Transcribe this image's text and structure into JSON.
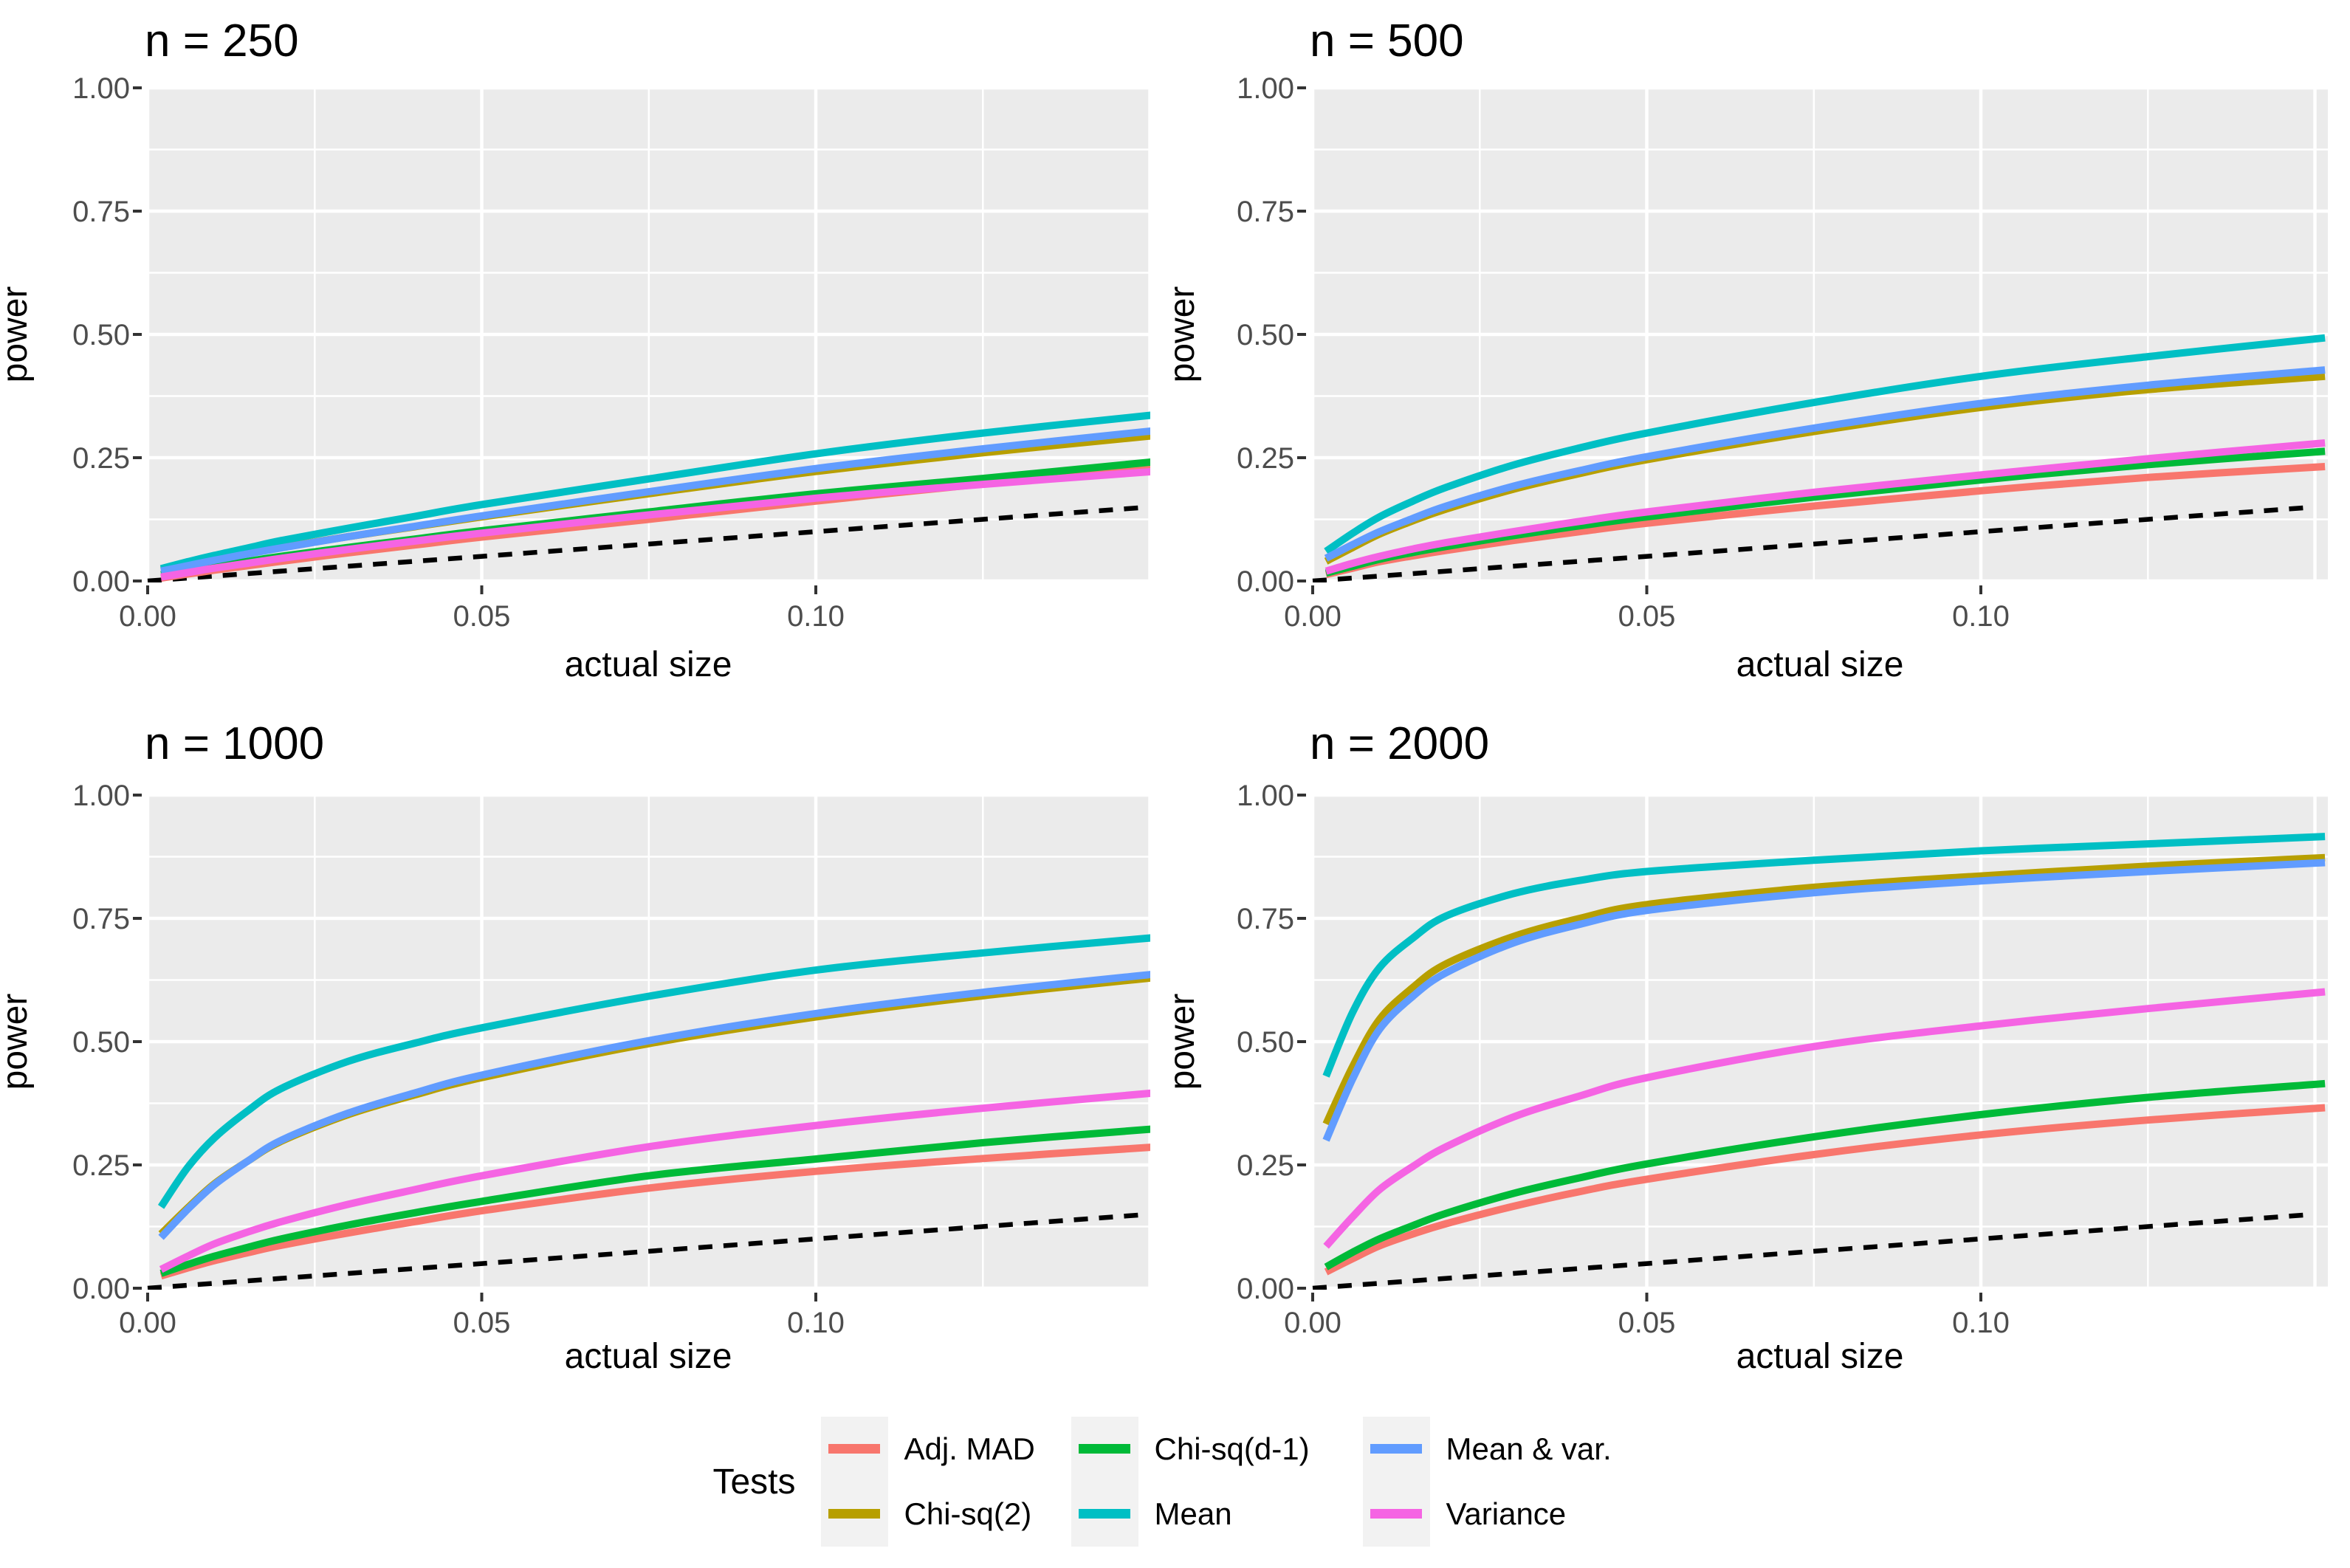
{
  "figure": {
    "background": "#FFFFFF",
    "panel_background": "#EBEBEB",
    "grid_color": "#FFFFFF",
    "tick_text_color": "#4D4D4D",
    "tick_mark_color": "#333333",
    "title_color": "#000000"
  },
  "legend": {
    "title": "Tests",
    "key_background": "#F2F2F2",
    "items": [
      {
        "label": "Adj. MAD",
        "color": "#F8766D"
      },
      {
        "label": "Chi-sq(2)",
        "color": "#B79F00"
      },
      {
        "label": "Chi-sq(d-1)",
        "color": "#00BA38"
      },
      {
        "label": "Mean",
        "color": "#00BFC4"
      },
      {
        "label": "Mean & var.",
        "color": "#619CFF"
      },
      {
        "label": "Variance",
        "color": "#F564E3"
      }
    ]
  },
  "chart_data": [
    {
      "type": "line",
      "title": "n = 250",
      "xlabel": "actual size",
      "ylabel": "power",
      "xlim": [
        0,
        0.15
      ],
      "ylim": [
        0,
        1
      ],
      "grid": true,
      "x_ticks": {
        "values": [
          0,
          0.05,
          0.1
        ],
        "labels": [
          "0.00",
          "0.05",
          "0.10"
        ]
      },
      "y_ticks": {
        "values": [
          0,
          0.25,
          0.5,
          0.75,
          1
        ],
        "labels": [
          "0.00",
          "0.25",
          "0.50",
          "0.75",
          "1.00"
        ]
      },
      "x_minor": [
        0.025,
        0.075,
        0.125
      ],
      "y_minor": [
        0.125,
        0.375,
        0.625,
        0.875
      ],
      "reference_line": {
        "name": "identity",
        "style": "dashed",
        "color": "#000000",
        "x": [
          0,
          0.1487
        ],
        "y": [
          0,
          0.1487
        ]
      },
      "x": [
        0.002,
        0.006,
        0.01,
        0.015,
        0.02,
        0.03,
        0.04,
        0.05,
        0.075,
        0.1,
        0.125,
        0.1515
      ],
      "series": [
        {
          "name": "Adj. MAD",
          "color": "#F8766D",
          "y": [
            0.006,
            0.014,
            0.022,
            0.031,
            0.04,
            0.057,
            0.073,
            0.089,
            0.125,
            0.162,
            0.197,
            0.232
          ]
        },
        {
          "name": "Chi-sq(2)",
          "color": "#B79F00",
          "y": [
            0.022,
            0.033,
            0.044,
            0.056,
            0.068,
            0.09,
            0.11,
            0.13,
            0.177,
            0.222,
            0.26,
            0.296
          ]
        },
        {
          "name": "Chi-sq(d-1)",
          "color": "#00BA38",
          "y": [
            0.013,
            0.021,
            0.03,
            0.04,
            0.05,
            0.068,
            0.085,
            0.102,
            0.14,
            0.177,
            0.208,
            0.243
          ]
        },
        {
          "name": "Mean",
          "color": "#00BFC4",
          "y": [
            0.025,
            0.039,
            0.052,
            0.067,
            0.082,
            0.107,
            0.131,
            0.155,
            0.207,
            0.258,
            0.3,
            0.338
          ]
        },
        {
          "name": "Mean & var.",
          "color": "#619CFF",
          "y": [
            0.02,
            0.031,
            0.042,
            0.055,
            0.067,
            0.09,
            0.111,
            0.132,
            0.181,
            0.228,
            0.268,
            0.306
          ]
        },
        {
          "name": "Variance",
          "color": "#F564E3",
          "y": [
            0.008,
            0.017,
            0.026,
            0.036,
            0.046,
            0.064,
            0.081,
            0.097,
            0.134,
            0.168,
            0.196,
            0.223
          ]
        }
      ]
    },
    {
      "type": "line",
      "title": "n = 500",
      "xlabel": "actual size",
      "ylabel": "power",
      "xlim": [
        0,
        0.15
      ],
      "ylim": [
        0,
        1
      ],
      "grid": true,
      "x_ticks": {
        "values": [
          0,
          0.05,
          0.1
        ],
        "labels": [
          "0.00",
          "0.05",
          "0.10"
        ]
      },
      "y_ticks": {
        "values": [
          0,
          0.25,
          0.5,
          0.75,
          1
        ],
        "labels": [
          "0.00",
          "0.25",
          "0.50",
          "0.75",
          "1.00"
        ]
      },
      "x_minor": [
        0.025,
        0.075,
        0.125
      ],
      "y_minor": [
        0.125,
        0.375,
        0.625,
        0.875
      ],
      "reference_line": {
        "name": "identity",
        "style": "dashed",
        "color": "#000000",
        "x": [
          0,
          0.1487
        ],
        "y": [
          0,
          0.1487
        ]
      },
      "x": [
        0.002,
        0.006,
        0.01,
        0.015,
        0.02,
        0.03,
        0.04,
        0.05,
        0.075,
        0.1,
        0.125,
        0.1515
      ],
      "series": [
        {
          "name": "Adj. MAD",
          "color": "#F8766D",
          "y": [
            0.013,
            0.026,
            0.039,
            0.051,
            0.062,
            0.082,
            0.1,
            0.117,
            0.152,
            0.183,
            0.21,
            0.232
          ]
        },
        {
          "name": "Chi-sq(2)",
          "color": "#B79F00",
          "y": [
            0.04,
            0.068,
            0.095,
            0.122,
            0.146,
            0.186,
            0.218,
            0.246,
            0.303,
            0.352,
            0.388,
            0.415
          ]
        },
        {
          "name": "Chi-sq(d-1)",
          "color": "#00BA38",
          "y": [
            0.016,
            0.03,
            0.044,
            0.058,
            0.07,
            0.092,
            0.112,
            0.13,
            0.17,
            0.205,
            0.236,
            0.263
          ]
        },
        {
          "name": "Mean",
          "color": "#00BFC4",
          "y": [
            0.06,
            0.097,
            0.13,
            0.162,
            0.19,
            0.235,
            0.27,
            0.3,
            0.362,
            0.415,
            0.455,
            0.493
          ]
        },
        {
          "name": "Mean & var.",
          "color": "#619CFF",
          "y": [
            0.046,
            0.074,
            0.1,
            0.127,
            0.152,
            0.192,
            0.224,
            0.252,
            0.31,
            0.36,
            0.397,
            0.428
          ]
        },
        {
          "name": "Variance",
          "color": "#F564E3",
          "y": [
            0.02,
            0.036,
            0.05,
            0.065,
            0.078,
            0.1,
            0.121,
            0.14,
            0.18,
            0.215,
            0.248,
            0.28
          ]
        }
      ]
    },
    {
      "type": "line",
      "title": "n = 1000",
      "xlabel": "actual size",
      "ylabel": "power",
      "xlim": [
        0,
        0.15
      ],
      "ylim": [
        0,
        1
      ],
      "grid": true,
      "x_ticks": {
        "values": [
          0,
          0.05,
          0.1
        ],
        "labels": [
          "0.00",
          "0.05",
          "0.10"
        ]
      },
      "y_ticks": {
        "values": [
          0,
          0.25,
          0.5,
          0.75,
          1
        ],
        "labels": [
          "0.00",
          "0.25",
          "0.50",
          "0.75",
          "1.00"
        ]
      },
      "x_minor": [
        0.025,
        0.075,
        0.125
      ],
      "y_minor": [
        0.125,
        0.375,
        0.625,
        0.875
      ],
      "reference_line": {
        "name": "identity",
        "style": "dashed",
        "color": "#000000",
        "x": [
          0,
          0.1487
        ],
        "y": [
          0,
          0.1487
        ]
      },
      "x": [
        0.002,
        0.006,
        0.01,
        0.015,
        0.02,
        0.03,
        0.04,
        0.05,
        0.075,
        0.1,
        0.125,
        0.1515
      ],
      "series": [
        {
          "name": "Adj. MAD",
          "color": "#F8766D",
          "y": [
            0.025,
            0.041,
            0.056,
            0.072,
            0.087,
            0.112,
            0.135,
            0.157,
            0.203,
            0.237,
            0.263,
            0.287
          ]
        },
        {
          "name": "Chi-sq(2)",
          "color": "#B79F00",
          "y": [
            0.11,
            0.163,
            0.212,
            0.258,
            0.298,
            0.352,
            0.392,
            0.427,
            0.496,
            0.55,
            0.593,
            0.631
          ]
        },
        {
          "name": "Chi-sq(d-1)",
          "color": "#00BA38",
          "y": [
            0.03,
            0.048,
            0.065,
            0.083,
            0.1,
            0.128,
            0.153,
            0.176,
            0.228,
            0.262,
            0.295,
            0.324
          ]
        },
        {
          "name": "Mean",
          "color": "#00BFC4",
          "y": [
            0.165,
            0.245,
            0.305,
            0.36,
            0.405,
            0.46,
            0.497,
            0.528,
            0.592,
            0.645,
            0.68,
            0.712
          ]
        },
        {
          "name": "Mean & var.",
          "color": "#619CFF",
          "y": [
            0.103,
            0.16,
            0.21,
            0.258,
            0.3,
            0.355,
            0.396,
            0.432,
            0.502,
            0.557,
            0.6,
            0.638
          ]
        },
        {
          "name": "Variance",
          "color": "#F564E3",
          "y": [
            0.038,
            0.065,
            0.09,
            0.114,
            0.135,
            0.17,
            0.2,
            0.228,
            0.287,
            0.33,
            0.365,
            0.397
          ]
        }
      ]
    },
    {
      "type": "line",
      "title": "n = 2000",
      "xlabel": "actual size",
      "ylabel": "power",
      "xlim": [
        0,
        0.15
      ],
      "ylim": [
        0,
        1
      ],
      "grid": true,
      "x_ticks": {
        "values": [
          0,
          0.05,
          0.1
        ],
        "labels": [
          "0.00",
          "0.05",
          "0.10"
        ]
      },
      "y_ticks": {
        "values": [
          0,
          0.25,
          0.5,
          0.75,
          1
        ],
        "labels": [
          "0.00",
          "0.25",
          "0.50",
          "0.75",
          "1.00"
        ]
      },
      "x_minor": [
        0.025,
        0.075,
        0.125
      ],
      "y_minor": [
        0.125,
        0.375,
        0.625,
        0.875
      ],
      "reference_line": {
        "name": "identity",
        "style": "dashed",
        "color": "#000000",
        "x": [
          0,
          0.1487
        ],
        "y": [
          0,
          0.1487
        ]
      },
      "x": [
        0.002,
        0.006,
        0.01,
        0.015,
        0.02,
        0.03,
        0.04,
        0.05,
        0.075,
        0.1,
        0.125,
        0.1515
      ],
      "series": [
        {
          "name": "Adj. MAD",
          "color": "#F8766D",
          "y": [
            0.033,
            0.06,
            0.086,
            0.11,
            0.131,
            0.166,
            0.196,
            0.221,
            0.271,
            0.311,
            0.341,
            0.366
          ]
        },
        {
          "name": "Chi-sq(2)",
          "color": "#B79F00",
          "y": [
            0.333,
            0.45,
            0.545,
            0.61,
            0.658,
            0.713,
            0.75,
            0.778,
            0.813,
            0.836,
            0.856,
            0.873
          ]
        },
        {
          "name": "Chi-sq(d-1)",
          "color": "#00BA38",
          "y": [
            0.043,
            0.073,
            0.1,
            0.127,
            0.152,
            0.192,
            0.224,
            0.252,
            0.307,
            0.352,
            0.387,
            0.415
          ]
        },
        {
          "name": "Mean",
          "color": "#00BFC4",
          "y": [
            0.43,
            0.56,
            0.65,
            0.71,
            0.755,
            0.8,
            0.827,
            0.845,
            0.868,
            0.887,
            0.901,
            0.916
          ]
        },
        {
          "name": "Mean & var.",
          "color": "#619CFF",
          "y": [
            0.3,
            0.425,
            0.525,
            0.592,
            0.64,
            0.7,
            0.738,
            0.766,
            0.802,
            0.826,
            0.845,
            0.863
          ]
        },
        {
          "name": "Variance",
          "color": "#F564E3",
          "y": [
            0.085,
            0.145,
            0.2,
            0.247,
            0.287,
            0.347,
            0.39,
            0.427,
            0.49,
            0.532,
            0.567,
            0.601
          ]
        }
      ]
    }
  ]
}
